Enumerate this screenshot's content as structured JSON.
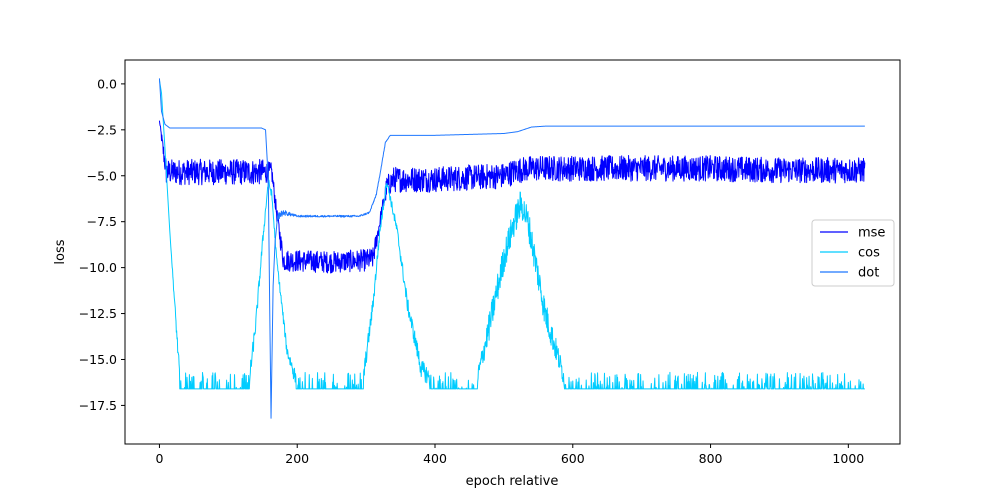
{
  "chart_data": {
    "type": "line",
    "title": "",
    "xlabel": "epoch relative",
    "ylabel": "loss",
    "xlim": [
      -50,
      1075
    ],
    "ylim": [
      -19.6,
      1.3
    ],
    "xticks": [
      0,
      200,
      400,
      600,
      800,
      1000
    ],
    "yticks": [
      0.0,
      -2.5,
      -5.0,
      -7.5,
      -10.0,
      -12.5,
      -15.0,
      -17.5
    ],
    "xtick_labels": [
      "0",
      "200",
      "400",
      "600",
      "800",
      "1000"
    ],
    "ytick_labels": [
      "0.0",
      "−2.5",
      "−5.0",
      "−7.5",
      "−10.0",
      "−12.5",
      "−15.0",
      "−17.5"
    ],
    "grid": false,
    "legend_position": "center-right",
    "series": [
      {
        "name": "mse",
        "color": "#0000ff",
        "x": [
          0,
          5,
          10,
          50,
          100,
          150,
          163,
          170,
          180,
          250,
          300,
          310,
          320,
          330,
          340,
          400,
          450,
          500,
          520,
          540,
          600,
          700,
          800,
          900,
          1024
        ],
        "y": [
          -2.0,
          -3.5,
          -4.8,
          -4.8,
          -4.8,
          -4.8,
          -4.8,
          -7.0,
          -9.6,
          -9.7,
          -9.6,
          -9.5,
          -7.5,
          -5.6,
          -5.2,
          -5.2,
          -5.1,
          -5.0,
          -4.7,
          -4.6,
          -4.6,
          -4.6,
          -4.6,
          -4.7,
          -4.7
        ],
        "noise": [
          0.0,
          0.5,
          0.7,
          0.7,
          0.7,
          0.7,
          0.5,
          0.4,
          0.6,
          0.6,
          0.6,
          0.6,
          0.4,
          0.6,
          0.7,
          0.7,
          0.7,
          0.7,
          0.7,
          0.7,
          0.7,
          0.7,
          0.7,
          0.7,
          0.7
        ]
      },
      {
        "name": "cos",
        "color": "#00ccff",
        "x": [
          0,
          3,
          8,
          15,
          30,
          60,
          130,
          140,
          150,
          158,
          163,
          170,
          185,
          200,
          250,
          295,
          310,
          320,
          330,
          345,
          360,
          380,
          400,
          460,
          480,
          500,
          515,
          525,
          535,
          560,
          590,
          700,
          800,
          900,
          1024
        ],
        "y": [
          0.2,
          -0.5,
          -3.5,
          -8.0,
          -16.3,
          -16.3,
          -16.3,
          -13.0,
          -8.5,
          -5.3,
          -6.0,
          -9.5,
          -14.5,
          -16.3,
          -16.3,
          -16.3,
          -12.0,
          -8.0,
          -5.3,
          -8.0,
          -12.0,
          -15.5,
          -16.3,
          -16.3,
          -13.0,
          -9.5,
          -7.5,
          -6.5,
          -7.5,
          -12.5,
          -16.3,
          -16.3,
          -16.3,
          -16.3,
          -16.3
        ],
        "noise": [
          0.0,
          0.0,
          0.0,
          0.0,
          0.5,
          0.5,
          0.5,
          0.4,
          0.3,
          0.2,
          0.2,
          0.2,
          0.3,
          0.5,
          0.5,
          0.5,
          0.4,
          0.3,
          0.2,
          0.3,
          0.4,
          0.5,
          0.5,
          0.5,
          0.8,
          0.8,
          0.8,
          0.8,
          0.8,
          0.8,
          0.5,
          0.5,
          0.5,
          0.5,
          0.5
        ]
      },
      {
        "name": "dot",
        "color": "#1f77ff",
        "x": [
          0,
          3,
          8,
          15,
          100,
          148,
          154,
          158,
          160,
          162,
          165,
          168,
          172,
          180,
          200,
          250,
          290,
          305,
          315,
          322,
          328,
          335,
          345,
          400,
          500,
          520,
          540,
          560,
          700,
          900,
          1024
        ],
        "y": [
          0.3,
          -1.5,
          -2.2,
          -2.4,
          -2.4,
          -2.4,
          -2.5,
          -5.2,
          -12.0,
          -18.2,
          -11.0,
          -8.5,
          -7.2,
          -7.0,
          -7.2,
          -7.2,
          -7.2,
          -7.0,
          -6.0,
          -4.5,
          -3.2,
          -2.8,
          -2.8,
          -2.8,
          -2.7,
          -2.6,
          -2.35,
          -2.3,
          -2.3,
          -2.3,
          -2.3
        ],
        "noise": [
          0.0,
          0.0,
          0.0,
          0.0,
          0.0,
          0.0,
          0.0,
          0.0,
          0.0,
          0.0,
          0.0,
          0.0,
          0.2,
          0.15,
          0.05,
          0.05,
          0.05,
          0.05,
          0.05,
          0.05,
          0.05,
          0.0,
          0.0,
          0.0,
          0.0,
          0.0,
          0.0,
          0.0,
          0.0,
          0.0,
          0.0
        ]
      }
    ]
  }
}
